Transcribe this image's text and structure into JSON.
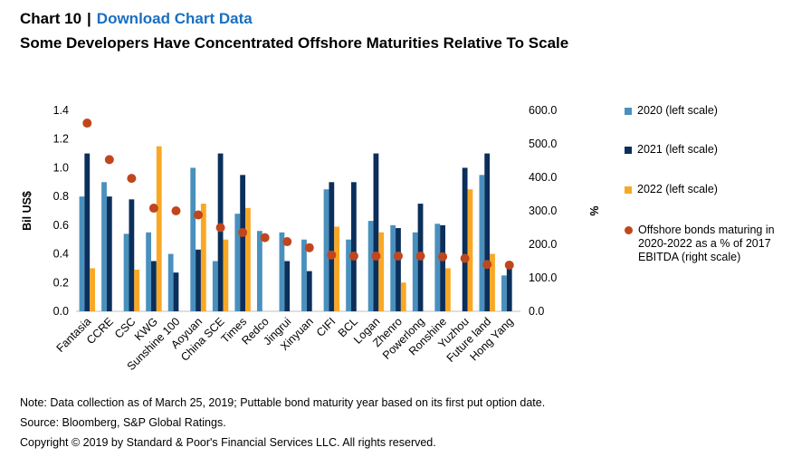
{
  "header": {
    "chart_number": "Chart 10",
    "separator": "|",
    "download_link": "Download Chart Data"
  },
  "chart_data": {
    "type": "bar",
    "title": "Some Developers Have Concentrated Offshore Maturities Relative To Scale",
    "ylabel": "Bil US$",
    "y2label": "%",
    "ylim": [
      0,
      1.4
    ],
    "y2lim": [
      0,
      600
    ],
    "yticks": [
      "0.0",
      "0.2",
      "0.4",
      "0.6",
      "0.8",
      "1.0",
      "1.2",
      "1.4"
    ],
    "y2ticks": [
      "0.0",
      "100.0",
      "200.0",
      "300.0",
      "400.0",
      "500.0",
      "600.0"
    ],
    "legend_position": "right",
    "categories": [
      "Fantasia",
      "CCRE",
      "CSC",
      "KWG",
      "Sunshine 100",
      "Aoyuan",
      "China SCE",
      "Times",
      "Redco",
      "Jingrui",
      "Xinyuan",
      "CIFI",
      "BCL",
      "Logan",
      "Zhenro",
      "Powerlong",
      "Ronshine",
      "Yuzhou",
      "Future land",
      "Hong Yang"
    ],
    "series": [
      {
        "name": "2020 (left scale)",
        "color": "#4a90bd",
        "kind": "bar",
        "axis": "left",
        "values": [
          0.8,
          0.9,
          0.54,
          0.55,
          0.4,
          1.0,
          0.35,
          0.68,
          0.56,
          0.55,
          0.5,
          0.85,
          0.5,
          0.63,
          0.6,
          0.55,
          0.61,
          0.0,
          0.95,
          0.25
        ]
      },
      {
        "name": "2021 (left scale)",
        "color": "#0b2f5b",
        "kind": "bar",
        "axis": "left",
        "values": [
          1.1,
          0.8,
          0.78,
          0.35,
          0.27,
          0.43,
          1.1,
          0.95,
          0.0,
          0.35,
          0.28,
          0.9,
          0.9,
          1.1,
          0.58,
          0.75,
          0.6,
          1.0,
          1.1,
          0.3
        ]
      },
      {
        "name": "2022 (left scale)",
        "color": "#f9a825",
        "kind": "bar",
        "axis": "left",
        "values": [
          0.3,
          0.0,
          0.29,
          1.15,
          0.0,
          0.75,
          0.5,
          0.72,
          0.0,
          0.0,
          0.0,
          0.59,
          0.0,
          0.55,
          0.2,
          0.0,
          0.3,
          0.85,
          0.4,
          0.0
        ]
      },
      {
        "name": "Offshore bonds maturing in 2020-2022 as a % of 2017 EBITDA (right scale)",
        "color": "#c0461e",
        "kind": "dot",
        "axis": "right",
        "values": [
          562,
          453,
          397,
          308,
          300,
          288,
          250,
          235,
          220,
          208,
          190,
          168,
          165,
          165,
          165,
          165,
          163,
          158,
          140,
          138
        ]
      }
    ]
  },
  "footer": {
    "note": "Note: Data collection as of March 25, 2019; Puttable bond maturity year based on its first put option date.",
    "source": "Source: Bloomberg, S&P Global Ratings.",
    "copyright": "Copyright © 2019 by Standard & Poor's Financial Services LLC. All rights reserved."
  }
}
